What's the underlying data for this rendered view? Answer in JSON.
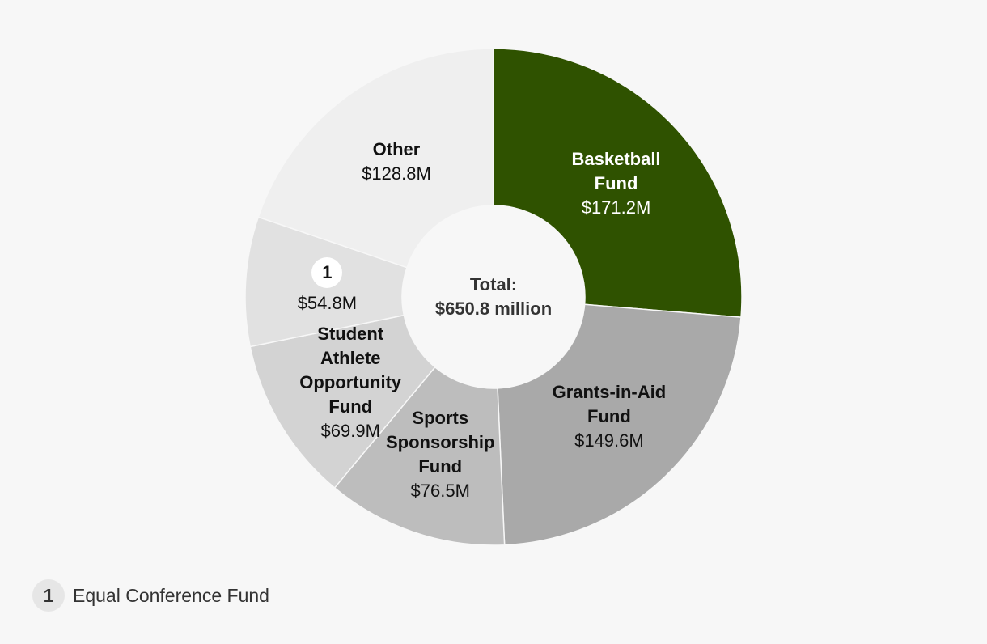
{
  "chart_data": {
    "type": "donut",
    "categories": [
      "Basketball Fund",
      "Grants-in-Aid Fund",
      "Sports Sponsorship Fund",
      "Student Athlete Opportunity Fund",
      "1",
      "Other"
    ],
    "values": [
      171.2,
      149.6,
      76.5,
      69.9,
      54.8,
      128.8
    ],
    "value_labels": [
      "$171.2M",
      "$149.6M",
      "$76.5M",
      "$69.9M",
      "$54.8M",
      "$128.8M"
    ],
    "colors": [
      "#2f5200",
      "#a9a9a9",
      "#bdbdbd",
      "#d3d3d3",
      "#e1e1e1",
      "#efefef"
    ],
    "center_title": "Total:",
    "center_value": "$650.8 million",
    "footnote": {
      "marker": "1",
      "text": "Equal Conference Fund"
    }
  }
}
